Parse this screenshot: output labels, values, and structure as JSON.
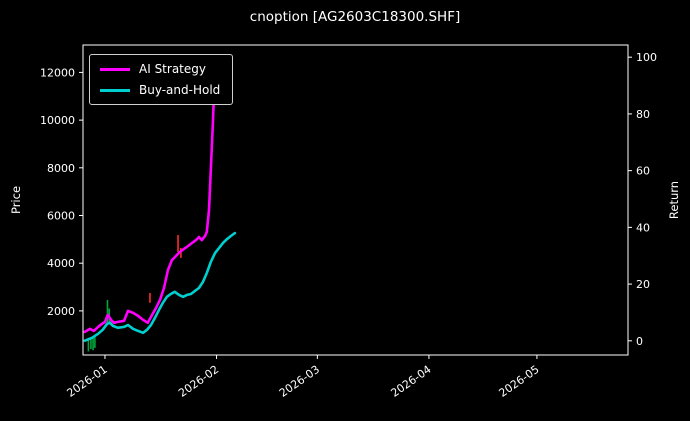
{
  "colors": {
    "background": "#000000",
    "text": "#ffffff",
    "spine": "#ffffff",
    "ai_strategy": "#ff00ff",
    "buy_and_hold": "#00cfcf",
    "candle_up": "#00a53c",
    "candle_down": "#ff2d2d",
    "legend_border": "#cfcfcf"
  },
  "chart_data": {
    "type": "line",
    "title": "cnoption [AG2603C18300.SHF]",
    "ylabel_left": "Price",
    "ylabel_right": "Return",
    "legend_position": "upper left",
    "grid": false,
    "xlim": [
      -6.1,
      145.3
    ],
    "left_ylim": [
      150,
      13150
    ],
    "right_ylim": [
      -5,
      104.3
    ],
    "x_ticks": [
      {
        "day": 0,
        "label": "2026-01"
      },
      {
        "day": 31,
        "label": "2026-02"
      },
      {
        "day": 59,
        "label": "2026-03"
      },
      {
        "day": 90,
        "label": "2026-04"
      },
      {
        "day": 120,
        "label": "2026-05"
      }
    ],
    "left_yticks": [
      2000,
      4000,
      6000,
      8000,
      10000,
      12000
    ],
    "right_yticks": [
      0,
      20,
      40,
      60,
      80,
      100
    ],
    "series": [
      {
        "name": "AI Strategy",
        "color_key": "ai_strategy",
        "width": 2.6,
        "points": [
          [
            -5.6,
            1120
          ],
          [
            -4.2,
            1250
          ],
          [
            -3.1,
            1160
          ],
          [
            -1.9,
            1330
          ],
          [
            -0.8,
            1460
          ],
          [
            0,
            1540
          ],
          [
            0.8,
            1830
          ],
          [
            1.7,
            1620
          ],
          [
            2.5,
            1500
          ],
          [
            3.6,
            1540
          ],
          [
            5.3,
            1580
          ],
          [
            6.4,
            2000
          ],
          [
            7.8,
            1920
          ],
          [
            9.2,
            1790
          ],
          [
            10.6,
            1620
          ],
          [
            11.9,
            1500
          ],
          [
            13.1,
            1830
          ],
          [
            14.2,
            2130
          ],
          [
            15.3,
            2460
          ],
          [
            16.4,
            2960
          ],
          [
            17.5,
            3720
          ],
          [
            18.6,
            4130
          ],
          [
            19.7,
            4300
          ],
          [
            20.8,
            4470
          ],
          [
            21.9,
            4590
          ],
          [
            23.1,
            4720
          ],
          [
            24.2,
            4850
          ],
          [
            25.3,
            4970
          ],
          [
            26.1,
            5100
          ],
          [
            26.9,
            4970
          ],
          [
            27.8,
            5140
          ],
          [
            28.3,
            5310
          ],
          [
            28.9,
            6230
          ],
          [
            29.4,
            7900
          ],
          [
            30,
            9990
          ],
          [
            30.6,
            12420
          ],
          [
            30.8,
            12590
          ]
        ]
      },
      {
        "name": "Buy-and-Hold",
        "color_key": "buy_and_hold",
        "width": 2.6,
        "points": [
          [
            -5.6,
            750
          ],
          [
            -3.6,
            870
          ],
          [
            -1.9,
            1040
          ],
          [
            -0.6,
            1210
          ],
          [
            0.6,
            1460
          ],
          [
            1.4,
            1500
          ],
          [
            2.2,
            1370
          ],
          [
            3.6,
            1290
          ],
          [
            5.3,
            1330
          ],
          [
            6.4,
            1410
          ],
          [
            7.8,
            1250
          ],
          [
            9.2,
            1160
          ],
          [
            10.6,
            1080
          ],
          [
            11.7,
            1210
          ],
          [
            12.8,
            1410
          ],
          [
            13.9,
            1710
          ],
          [
            15,
            2040
          ],
          [
            16.1,
            2340
          ],
          [
            17.2,
            2590
          ],
          [
            18.3,
            2710
          ],
          [
            19.4,
            2800
          ],
          [
            20.6,
            2670
          ],
          [
            21.7,
            2590
          ],
          [
            22.8,
            2670
          ],
          [
            23.9,
            2710
          ],
          [
            25,
            2840
          ],
          [
            26.1,
            2960
          ],
          [
            27.2,
            3210
          ],
          [
            28.3,
            3590
          ],
          [
            29.4,
            4050
          ],
          [
            30.6,
            4430
          ],
          [
            31.7,
            4640
          ],
          [
            32.8,
            4850
          ],
          [
            33.9,
            5010
          ],
          [
            35,
            5140
          ],
          [
            36.1,
            5260
          ]
        ]
      }
    ],
    "candle_wicks": [
      {
        "day": -4.6,
        "low": 300,
        "high": 800,
        "dir": "up"
      },
      {
        "day": -3.9,
        "low": 400,
        "high": 900,
        "dir": "up"
      },
      {
        "day": -3.3,
        "low": 350,
        "high": 850,
        "dir": "up"
      },
      {
        "day": -2.8,
        "low": 450,
        "high": 900,
        "dir": "up"
      },
      {
        "day": 0.7,
        "low": 1420,
        "high": 2460,
        "dir": "up"
      },
      {
        "day": 1.2,
        "low": 1500,
        "high": 2100,
        "dir": "up"
      },
      {
        "day": 12.5,
        "low": 2340,
        "high": 2750,
        "dir": "down"
      },
      {
        "day": 20.3,
        "low": 4470,
        "high": 5180,
        "dir": "down"
      },
      {
        "day": 21.1,
        "low": 4220,
        "high": 4640,
        "dir": "down"
      }
    ]
  }
}
